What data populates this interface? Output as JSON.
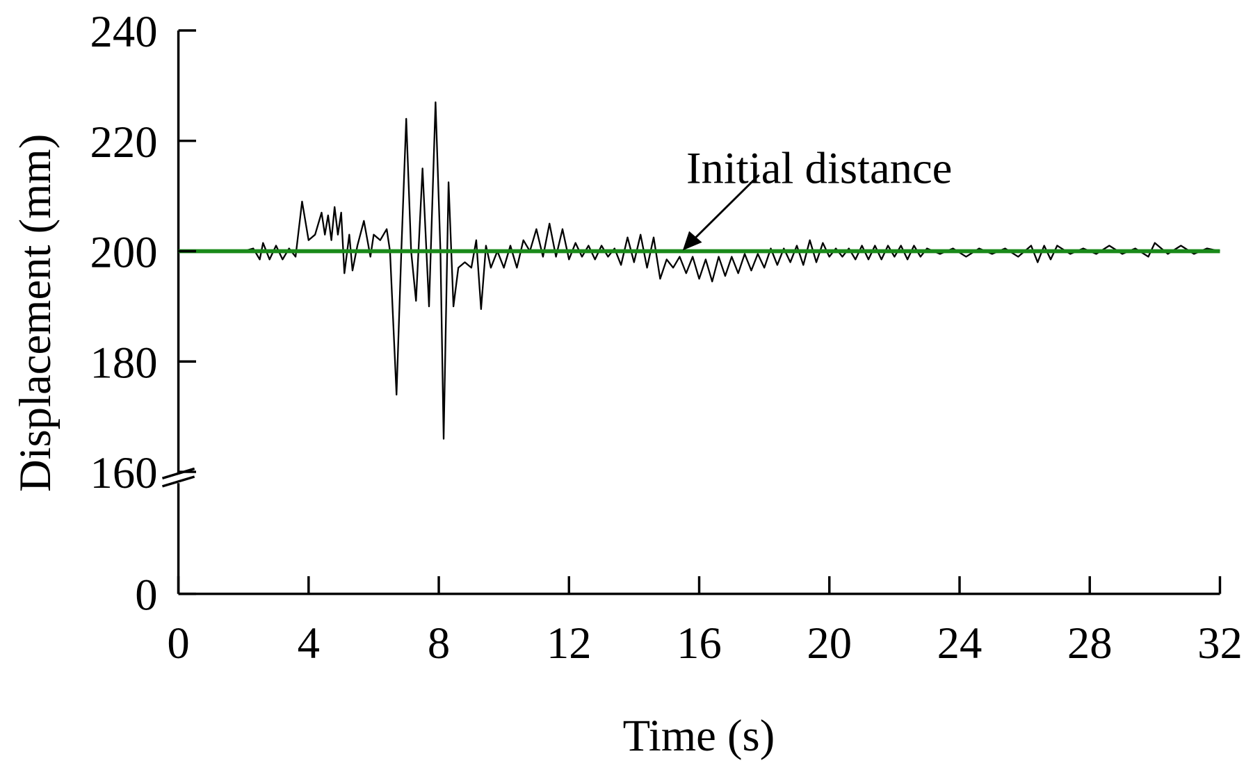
{
  "chart_data": {
    "type": "line",
    "x_label": "Time (s)",
    "y_label": "Displacement (mm)",
    "xlim": [
      0,
      32
    ],
    "xticks": [
      0,
      4,
      8,
      12,
      16,
      20,
      24,
      28,
      32
    ],
    "ylim": [
      0,
      240
    ],
    "yticks": [
      0,
      160,
      180,
      200,
      220,
      240
    ],
    "ybreak": [
      0,
      160
    ],
    "annotations": [
      {
        "text": "Initial distance"
      }
    ],
    "series": [
      {
        "color": "#000000",
        "x": [
          1.5,
          2.0,
          2.3,
          2.5,
          2.6,
          2.8,
          3.0,
          3.2,
          3.4,
          3.6,
          3.8,
          4.0,
          4.2,
          4.4,
          4.5,
          4.6,
          4.7,
          4.8,
          4.9,
          5.0,
          5.1,
          5.25,
          5.35,
          5.5,
          5.7,
          5.9,
          6.0,
          6.2,
          6.4,
          6.5,
          6.7,
          6.85,
          7.0,
          7.15,
          7.3,
          7.5,
          7.7,
          7.9,
          8.05,
          8.15,
          8.3,
          8.45,
          8.6,
          8.8,
          9.0,
          9.15,
          9.3,
          9.45,
          9.6,
          9.8,
          10.0,
          10.2,
          10.4,
          10.6,
          10.8,
          11.0,
          11.2,
          11.4,
          11.6,
          11.8,
          12.0,
          12.2,
          12.4,
          12.6,
          12.8,
          13.0,
          13.2,
          13.4,
          13.6,
          13.8,
          14.0,
          14.2,
          14.4,
          14.6,
          14.8,
          15.0,
          15.2,
          15.4,
          15.6,
          15.8,
          16.0,
          16.2,
          16.4,
          16.6,
          16.8,
          17.0,
          17.2,
          17.4,
          17.6,
          17.8,
          18.0,
          18.2,
          18.4,
          18.6,
          18.8,
          19.0,
          19.2,
          19.4,
          19.6,
          19.8,
          20.0,
          20.2,
          20.4,
          20.6,
          20.8,
          21.0,
          21.2,
          21.4,
          21.6,
          21.8,
          22.0,
          22.2,
          22.4,
          22.6,
          22.8,
          23.0,
          23.4,
          23.8,
          24.2,
          24.6,
          25.0,
          25.4,
          25.8,
          26.2,
          26.4,
          26.6,
          26.8,
          27.0,
          27.4,
          27.8,
          28.2,
          28.6,
          29.0,
          29.4,
          29.8,
          30.0,
          30.4,
          30.8,
          31.2,
          31.6,
          32.0
        ],
        "values": [
          200,
          200,
          200.5,
          198.5,
          201.5,
          198.5,
          201,
          198.5,
          200.5,
          199,
          209,
          202,
          203,
          207,
          203,
          206.5,
          202,
          208,
          203,
          207,
          196,
          203,
          196.5,
          201,
          205.5,
          199,
          203,
          202,
          204,
          200,
          174,
          200,
          224,
          200,
          191,
          215,
          190,
          227,
          200,
          166,
          212.5,
          190,
          197,
          198,
          197,
          202,
          189.5,
          201,
          197,
          200,
          197,
          201,
          197,
          202,
          200,
          204,
          199,
          205,
          199,
          204,
          198.5,
          201.5,
          199,
          201,
          198.5,
          201,
          199,
          200.5,
          197.5,
          202.5,
          198,
          203,
          197,
          202.5,
          195,
          198.5,
          197,
          199,
          196,
          199,
          195,
          198.5,
          194.5,
          199,
          195.5,
          199,
          196,
          199.5,
          196.5,
          199.5,
          197,
          200.5,
          197.5,
          200.5,
          198,
          201,
          197.5,
          202,
          198,
          201.5,
          199,
          200.5,
          199,
          200.5,
          198.5,
          201,
          198.5,
          201,
          198.5,
          201,
          199,
          201,
          198.5,
          201,
          199,
          200.5,
          199.5,
          200.5,
          199,
          200.5,
          199.5,
          200.5,
          199,
          201,
          198,
          201,
          198.5,
          201,
          199.5,
          200.5,
          199.5,
          201,
          199.5,
          200.5,
          199,
          201.5,
          199.5,
          201,
          199.5,
          200.5,
          200
        ]
      },
      {
        "color": "#1a8a1a",
        "x": [
          0,
          32
        ],
        "values": [
          200,
          200
        ]
      }
    ]
  }
}
